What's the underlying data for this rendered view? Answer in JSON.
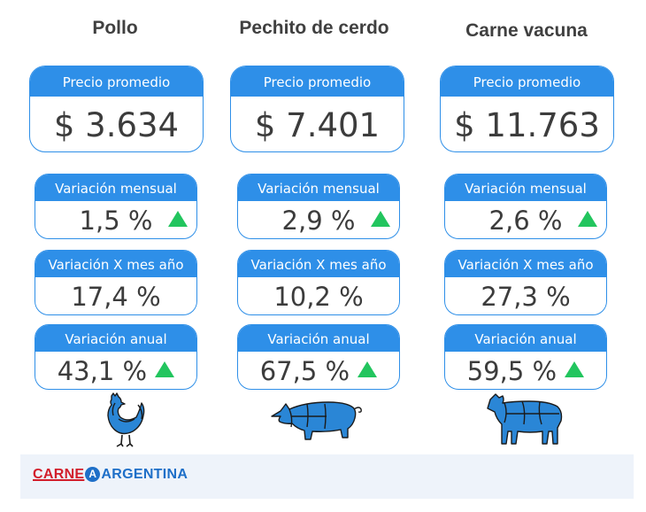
{
  "columns": [
    {
      "title": "Pollo",
      "price_label": "Precio promedio",
      "price": "$ 3.634",
      "monthly": {
        "label": "Variación mensual",
        "value": "1,5 %",
        "trend": "up"
      },
      "yoy_month": {
        "label": "Variación X mes año",
        "value": "17,4 %"
      },
      "annual": {
        "label": "Variación anual",
        "value": "43,1 %",
        "trend": "up"
      },
      "animal_icon": "chicken-icon"
    },
    {
      "title": "Pechito de cerdo",
      "price_label": "Precio promedio",
      "price": "$ 7.401",
      "monthly": {
        "label": "Variación mensual",
        "value": "2,9 %",
        "trend": "up"
      },
      "yoy_month": {
        "label": "Variación X mes año",
        "value": "10,2 %"
      },
      "annual": {
        "label": "Variación anual",
        "value": "67,5 %",
        "trend": "up"
      },
      "animal_icon": "pig-icon"
    },
    {
      "title": "Carne vacuna",
      "price_label": "Precio promedio",
      "price": "$ 11.763",
      "monthly": {
        "label": "Variación mensual",
        "value": "2,6 %",
        "trend": "up"
      },
      "yoy_month": {
        "label": "Variación X mes año",
        "value": "27,3 %"
      },
      "annual": {
        "label": "Variación anual",
        "value": "59,5 %",
        "trend": "up"
      },
      "animal_icon": "cow-icon"
    }
  ],
  "footer": {
    "logo_left": "CARNE",
    "logo_mark": "A",
    "logo_right": "ARGENTINA"
  },
  "colors": {
    "accent": "#2e8fe8",
    "up": "#22c55e",
    "logo_red": "#d21e2b",
    "logo_blue": "#1e6fc8"
  }
}
